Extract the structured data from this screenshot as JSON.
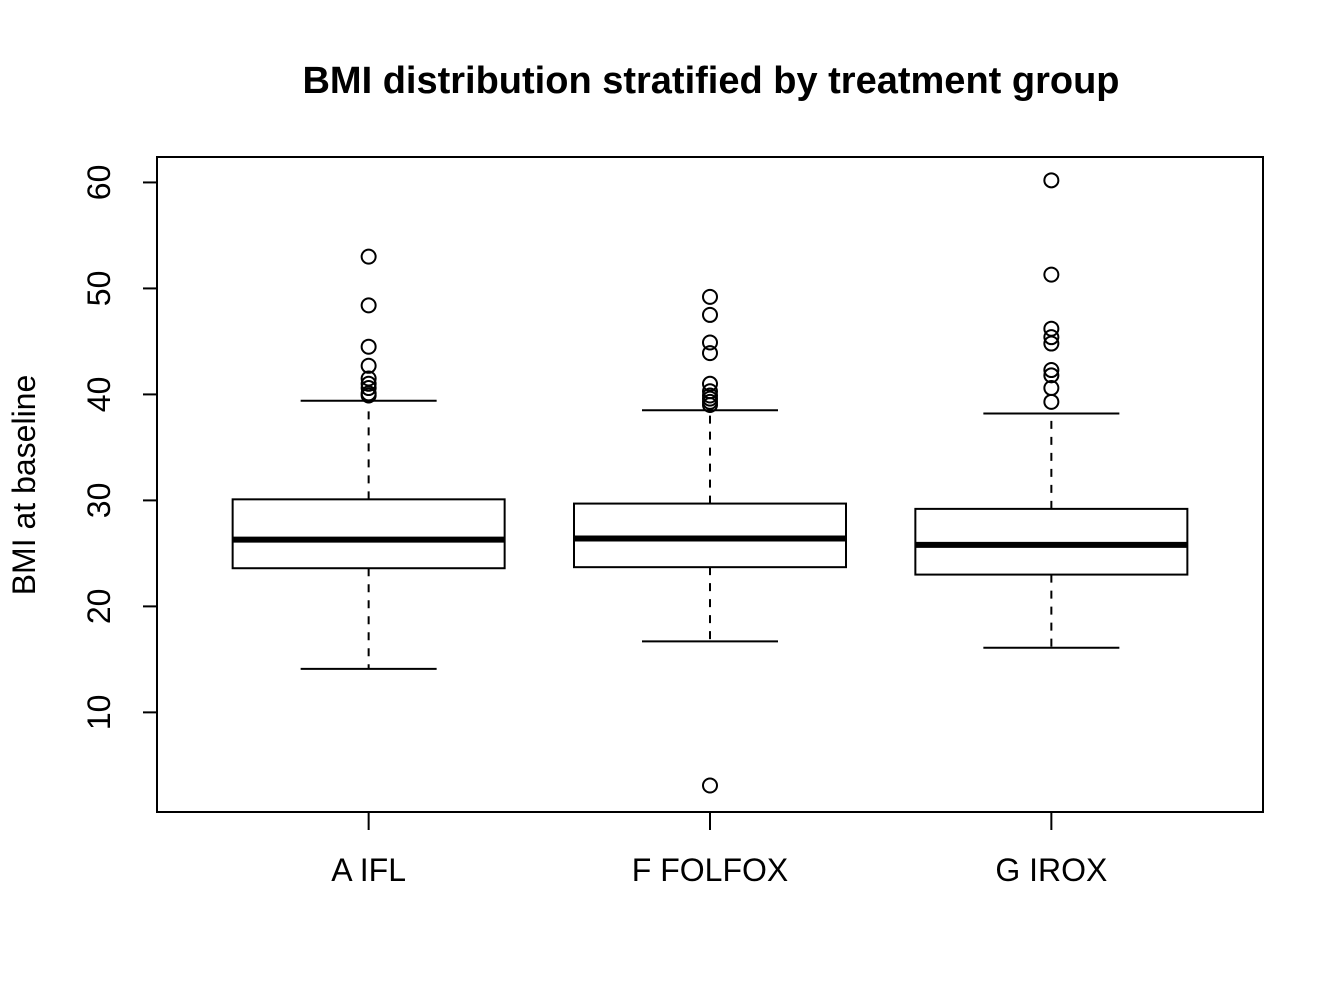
{
  "chart_data": {
    "type": "boxplot",
    "title": "BMI distribution stratified by treatment group",
    "xlabel": "",
    "ylabel": "BMI at baseline",
    "categories": [
      "A IFL",
      "F FOLFOX",
      "G IROX"
    ],
    "yticks": [
      10,
      20,
      30,
      40,
      50,
      60
    ],
    "ylim": [
      0.6,
      62.4
    ],
    "grid": false,
    "legend": "none",
    "boxes": [
      {
        "name": "A IFL",
        "whisker_low": 14.1,
        "q1": 23.6,
        "median": 26.3,
        "q3": 30.1,
        "whisker_high": 39.4,
        "outliers": [
          53.0,
          48.4,
          44.5,
          42.7,
          41.5,
          41.0,
          40.6,
          40.1,
          39.9
        ]
      },
      {
        "name": "F FOLFOX",
        "whisker_low": 16.7,
        "q1": 23.7,
        "median": 26.4,
        "q3": 29.7,
        "whisker_high": 38.5,
        "outliers": [
          49.2,
          47.5,
          44.9,
          43.9,
          41.0,
          40.3,
          39.9,
          39.6,
          39.3,
          39.0,
          3.1
        ]
      },
      {
        "name": "G IROX",
        "whisker_low": 16.1,
        "q1": 23.0,
        "median": 25.8,
        "q3": 29.2,
        "whisker_high": 38.2,
        "outliers": [
          60.2,
          51.3,
          46.2,
          45.4,
          44.8,
          42.3,
          41.8,
          40.6,
          39.3
        ]
      }
    ]
  }
}
